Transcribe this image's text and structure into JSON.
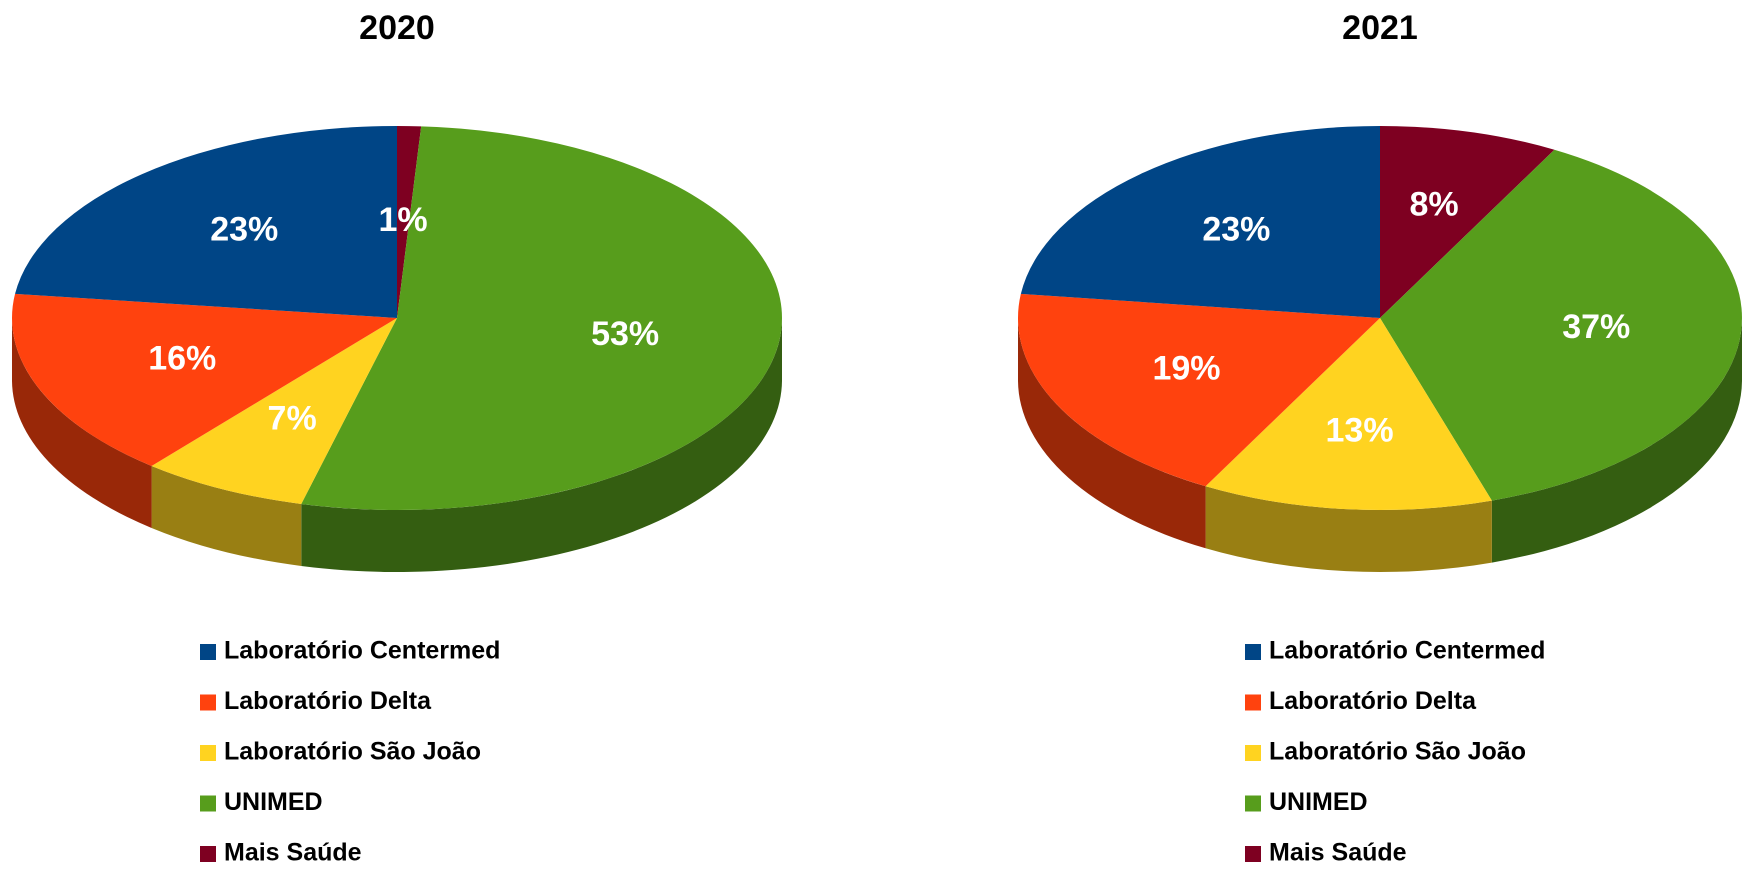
{
  "chart_data": [
    {
      "type": "pie",
      "title": "2020",
      "categories": [
        "Mais Saúde",
        "UNIMED",
        "Laboratório São João",
        "Laboratório Delta",
        "Laboratório Centermed"
      ],
      "values": [
        1,
        53,
        7,
        16,
        23
      ],
      "value_labels": [
        "1%",
        "53%",
        "7%",
        "16%",
        "23%"
      ],
      "colors": [
        "#7e0021",
        "#579d1c",
        "#ffd320",
        "#ff420e",
        "#004586"
      ]
    },
    {
      "type": "pie",
      "title": "2021",
      "categories": [
        "Mais Saúde",
        "UNIMED",
        "Laboratório São João",
        "Laboratório Delta",
        "Laboratório Centermed"
      ],
      "values": [
        8,
        37,
        13,
        19,
        23
      ],
      "value_labels": [
        "8%",
        "37%",
        "13%",
        "19%",
        "23%"
      ],
      "colors": [
        "#7e0021",
        "#579d1c",
        "#ffd320",
        "#ff420e",
        "#004586"
      ]
    }
  ]
}
